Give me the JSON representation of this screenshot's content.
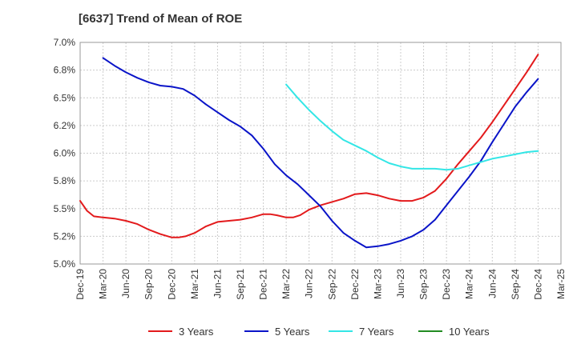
{
  "chart_data": {
    "type": "line",
    "title": "[6637]  Trend of Mean of ROE",
    "xlabel": "",
    "ylabel": "",
    "ylim": [
      5.0,
      7.0
    ],
    "grid": "horizontal",
    "legend_position": "bottom",
    "x_tick_labels": [
      "Dec-19",
      "Mar-20",
      "Jun-20",
      "Sep-20",
      "Dec-20",
      "Mar-21",
      "Jun-21",
      "Sep-21",
      "Dec-21",
      "Mar-22",
      "Jun-22",
      "Sep-22",
      "Dec-22",
      "Mar-23",
      "Jun-23",
      "Sep-23",
      "Dec-23",
      "Mar-24",
      "Jun-24",
      "Sep-24",
      "Dec-24",
      "Mar-25"
    ],
    "y_tick_labels": [
      "7.0%",
      "6.8%",
      "6.5%",
      "6.2%",
      "6.0%",
      "5.8%",
      "5.5%",
      "5.2%",
      "5.0%"
    ],
    "y_tick_values": [
      7.0,
      6.75,
      6.5,
      6.25,
      6.0,
      5.75,
      5.5,
      5.25,
      5.0
    ],
    "series": [
      {
        "name": "3 Years",
        "color": "#e31a1c",
        "x": [
          0,
          0.3,
          0.6,
          1,
          1.5,
          2,
          2.5,
          3,
          3.5,
          4,
          4.3,
          4.6,
          5,
          5.5,
          6,
          6.5,
          7,
          7.5,
          8,
          8.3,
          8.6,
          9,
          9.3,
          9.6,
          10,
          10.5,
          11,
          11.5,
          12,
          12.5,
          13,
          13.5,
          14,
          14.5,
          15,
          15.5,
          16,
          16.5,
          17,
          17.5,
          18,
          18.5,
          19,
          19.5,
          20
        ],
        "y": [
          5.57,
          5.48,
          5.43,
          5.42,
          5.41,
          5.39,
          5.36,
          5.31,
          5.27,
          5.24,
          5.24,
          5.25,
          5.28,
          5.34,
          5.38,
          5.39,
          5.4,
          5.42,
          5.45,
          5.45,
          5.44,
          5.42,
          5.42,
          5.44,
          5.49,
          5.53,
          5.56,
          5.59,
          5.63,
          5.64,
          5.62,
          5.59,
          5.57,
          5.57,
          5.6,
          5.66,
          5.77,
          5.9,
          6.02,
          6.14,
          6.28,
          6.43,
          6.58,
          6.73,
          6.89
        ]
      },
      {
        "name": "5 Years",
        "color": "#0a14c8",
        "x": [
          1,
          1.5,
          2,
          2.5,
          3,
          3.5,
          4,
          4.5,
          5,
          5.5,
          6,
          6.5,
          7,
          7.5,
          8,
          8.5,
          9,
          9.5,
          10,
          10.5,
          11,
          11.5,
          12,
          12.5,
          13,
          13.5,
          14,
          14.5,
          15,
          15.5,
          16,
          16.5,
          17,
          17.5,
          18,
          18.5,
          19,
          19.5,
          20
        ],
        "y": [
          6.86,
          6.79,
          6.73,
          6.68,
          6.64,
          6.61,
          6.6,
          6.58,
          6.52,
          6.44,
          6.37,
          6.3,
          6.24,
          6.16,
          6.04,
          5.9,
          5.8,
          5.72,
          5.62,
          5.52,
          5.39,
          5.28,
          5.21,
          5.15,
          5.16,
          5.18,
          5.21,
          5.25,
          5.31,
          5.4,
          5.53,
          5.66,
          5.79,
          5.93,
          6.1,
          6.26,
          6.42,
          6.55,
          6.67
        ]
      },
      {
        "name": "7 Years",
        "color": "#33e6e6",
        "x": [
          9,
          9.5,
          10,
          10.5,
          11,
          11.5,
          12,
          12.5,
          13,
          13.5,
          14,
          14.5,
          15,
          15.5,
          16,
          16.5,
          17,
          17.5,
          18,
          18.5,
          19,
          19.5,
          20
        ],
        "y": [
          6.62,
          6.5,
          6.39,
          6.29,
          6.2,
          6.12,
          6.07,
          6.02,
          5.96,
          5.91,
          5.88,
          5.86,
          5.86,
          5.86,
          5.85,
          5.86,
          5.89,
          5.92,
          5.95,
          5.97,
          5.99,
          6.01,
          6.02
        ]
      },
      {
        "name": "10 Years",
        "color": "#228b22",
        "x": [],
        "y": []
      }
    ]
  }
}
